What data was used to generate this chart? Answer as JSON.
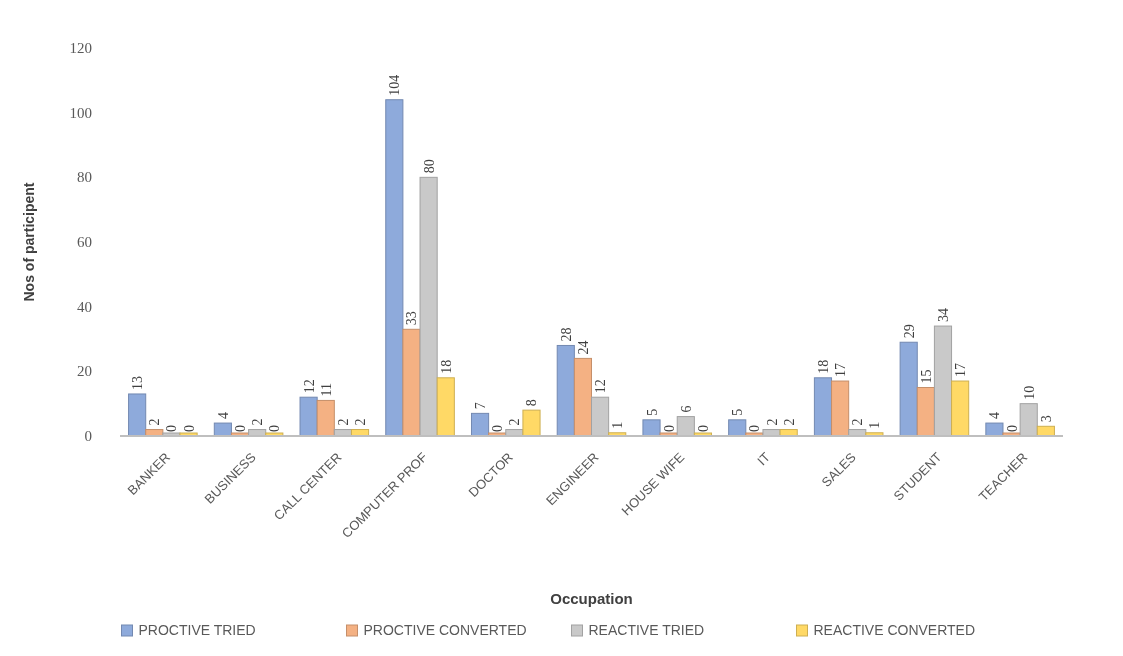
{
  "chart_data": {
    "type": "bar",
    "xlabel": "Occupation",
    "ylabel": "Nos of participent",
    "categories": [
      "BANKER",
      "BUSINESS",
      "CALL CENTER",
      "COMPUTER PROF",
      "DOCTOR",
      "ENGINEER",
      "HOUSE WIFE",
      "IT",
      "SALES",
      "STUDENT",
      "TEACHER"
    ],
    "series": [
      {
        "name": "PROCTIVE TRIED",
        "color": "#8eaadb",
        "values": [
          13,
          4,
          12,
          104,
          7,
          28,
          5,
          5,
          18,
          29,
          4
        ]
      },
      {
        "name": "PROCTIVE CONVERTED",
        "color": "#f4b183",
        "values": [
          2,
          0,
          11,
          33,
          0,
          24,
          0,
          0,
          17,
          15,
          0
        ]
      },
      {
        "name": "REACTIVE TRIED",
        "color": "#c9c9c9",
        "values": [
          0,
          2,
          2,
          80,
          2,
          12,
          6,
          2,
          2,
          34,
          10
        ]
      },
      {
        "name": "REACTIVE CONVERTED",
        "color": "#ffd966",
        "values": [
          0,
          0,
          2,
          18,
          8,
          1,
          0,
          2,
          1,
          17,
          3
        ]
      }
    ],
    "ylim": [
      0,
      120
    ],
    "yticks": [
      0,
      20,
      40,
      60,
      80,
      100,
      120
    ],
    "grid": false,
    "legend": "bottom",
    "data_labels": true
  }
}
